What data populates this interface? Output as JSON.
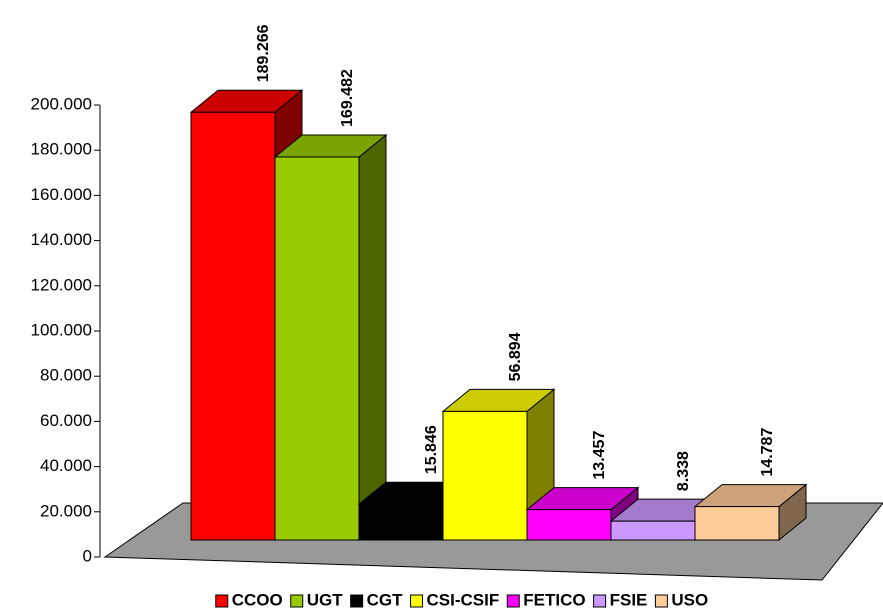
{
  "chart_data": {
    "type": "bar3d",
    "ylim": [
      0,
      200000
    ],
    "yticks": [
      0,
      {
        "value": 20000,
        "label": "20.000"
      },
      {
        "value": 40000,
        "label": "40.000"
      },
      {
        "value": 60000,
        "label": "60.000"
      },
      {
        "value": 80000,
        "label": "80.000"
      },
      {
        "value": 100000,
        "label": "100.000"
      },
      {
        "value": 120000,
        "label": "120.000"
      },
      {
        "value": 140000,
        "label": "140.000"
      },
      {
        "value": 160000,
        "label": "160.000"
      },
      {
        "value": 180000,
        "label": "180.000"
      },
      {
        "value": 200000,
        "label": "200.000"
      }
    ],
    "series": [
      {
        "name": "CCOO",
        "color": "#ff0000",
        "values": [
          189266
        ],
        "value_labels": [
          "189.266"
        ]
      },
      {
        "name": "UGT",
        "color": "#99cc00",
        "values": [
          169482
        ],
        "value_labels": [
          "169.482"
        ]
      },
      {
        "name": "CGT",
        "color": "#000000",
        "values": [
          15846
        ],
        "value_labels": [
          "15.846"
        ]
      },
      {
        "name": "CSI-CSIF",
        "color": "#ffff00",
        "values": [
          56894
        ],
        "value_labels": [
          "56.894"
        ]
      },
      {
        "name": "FETICO",
        "color": "#ff00ff",
        "values": [
          13457
        ],
        "value_labels": [
          "13.457"
        ]
      },
      {
        "name": "FSIE",
        "color": "#cc99ff",
        "values": [
          8338
        ],
        "value_labels": [
          "8.338"
        ]
      },
      {
        "name": "USO",
        "color": "#ffcc99",
        "values": [
          14787
        ],
        "value_labels": [
          "14.787"
        ]
      }
    ],
    "legend": "bottom"
  }
}
